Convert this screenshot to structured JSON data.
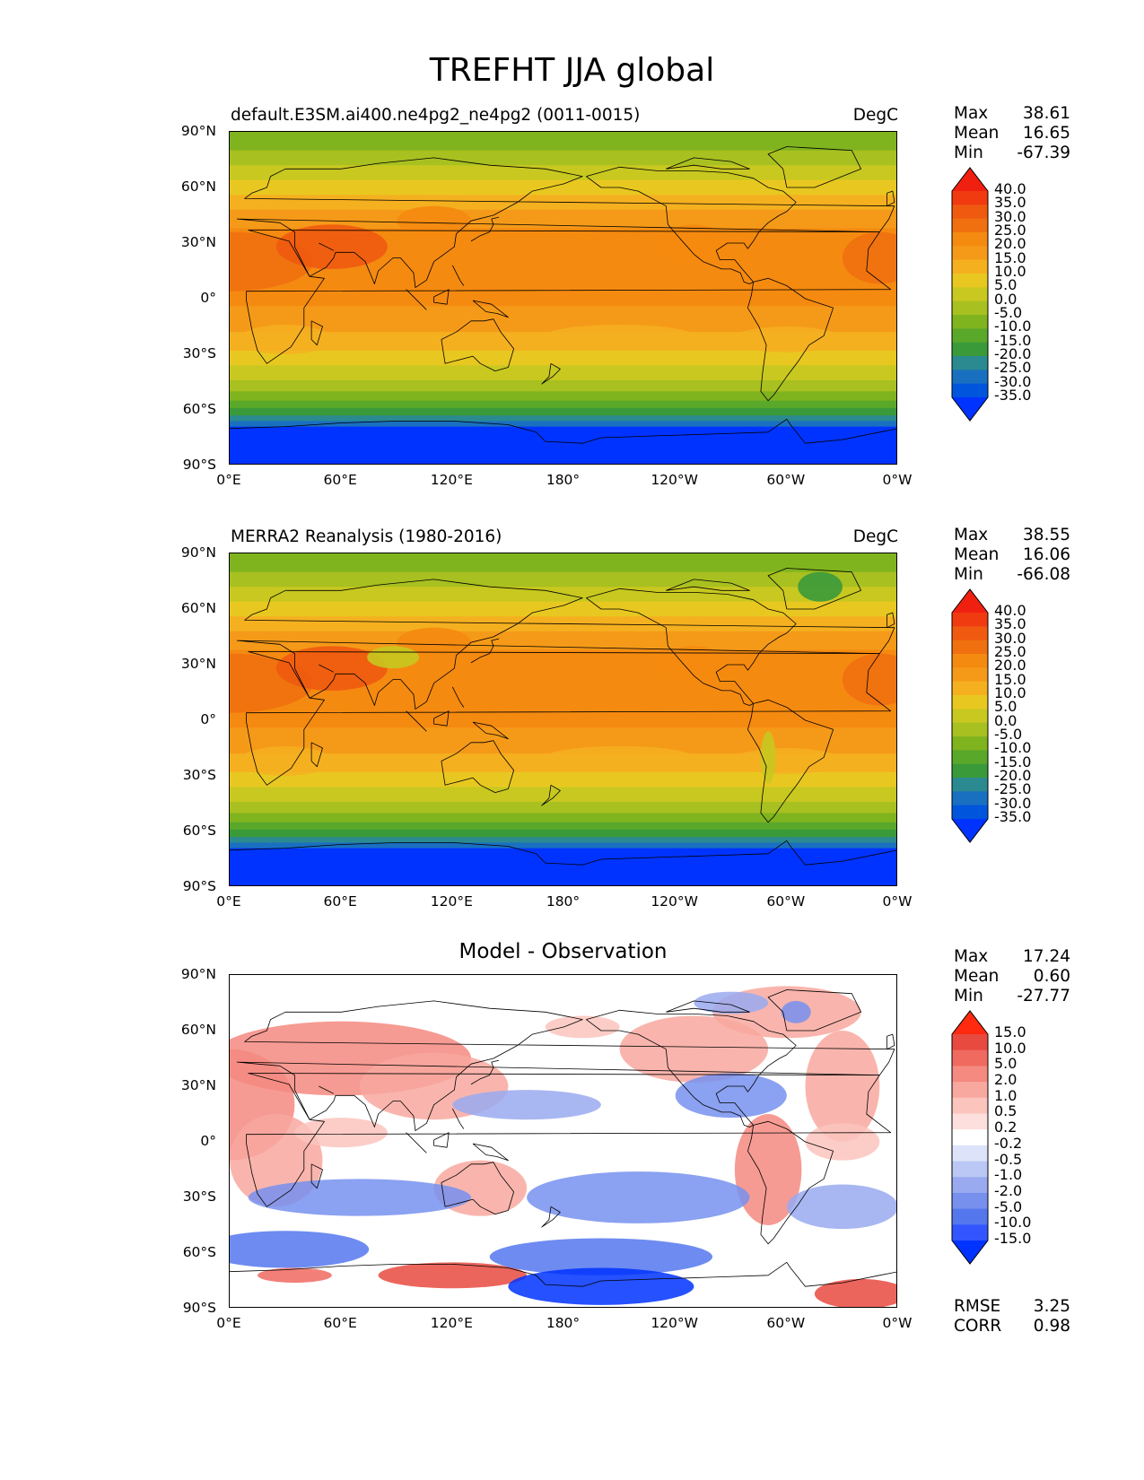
{
  "title": "TREFHT JJA global",
  "lat_labels": [
    "90°N",
    "60°N",
    "30°N",
    "0°",
    "30°S",
    "60°S",
    "90°S"
  ],
  "lon_labels": [
    "0°E",
    "60°E",
    "120°E",
    "180°",
    "120°W",
    "60°W",
    "0°W"
  ],
  "panels": [
    {
      "left_title": "default.E3SM.ai400.ne4pg2_ne4pg2 (0011-0015)",
      "right_title": "DegC",
      "stats": {
        "max_label": "Max",
        "max": "38.61",
        "mean_label": "Mean",
        "mean": "16.65",
        "min_label": "Min",
        "min": "-67.39"
      },
      "colorbar": [
        "40.0",
        "35.0",
        "30.0",
        "25.0",
        "20.0",
        "15.0",
        "10.0",
        "5.0",
        "0.0",
        "-5.0",
        "-10.0",
        "-15.0",
        "-20.0",
        "-25.0",
        "-30.0",
        "-35.0"
      ]
    },
    {
      "left_title": "MERRA2 Reanalysis (1980-2016)",
      "right_title": "DegC",
      "stats": {
        "max_label": "Max",
        "max": "38.55",
        "mean_label": "Mean",
        "mean": "16.06",
        "min_label": "Min",
        "min": "-66.08"
      },
      "colorbar": [
        "40.0",
        "35.0",
        "30.0",
        "25.0",
        "20.0",
        "15.0",
        "10.0",
        "5.0",
        "0.0",
        "-5.0",
        "-10.0",
        "-15.0",
        "-20.0",
        "-25.0",
        "-30.0",
        "-35.0"
      ]
    },
    {
      "center_title": "Model - Observation",
      "stats": {
        "max_label": "Max",
        "max": "17.24",
        "mean_label": "Mean",
        "mean": "0.60",
        "min_label": "Min",
        "min": "-27.77"
      },
      "colorbar": [
        "15.0",
        "10.0",
        "5.0",
        "2.0",
        "1.0",
        "0.5",
        "0.2",
        "-0.2",
        "-0.5",
        "-1.0",
        "-2.0",
        "-5.0",
        "-10.0",
        "-15.0"
      ],
      "error_stats": {
        "rmse_label": "RMSE",
        "rmse": "3.25",
        "corr_label": "CORR",
        "corr": "0.98"
      }
    }
  ],
  "colors": {
    "temp_scale": [
      "#0033ff",
      "#0055dd",
      "#1a70c0",
      "#2a8a90",
      "#3a9a3a",
      "#5aa82a",
      "#80b41e",
      "#a8c020",
      "#c8c820",
      "#e8c820",
      "#f5b020",
      "#f59a18",
      "#f58a10",
      "#f07010",
      "#f05a10",
      "#f03a10",
      "#f02010"
    ],
    "diff_scale": [
      "#0033ff",
      "#3355ff",
      "#5577ee",
      "#7790ee",
      "#99aaf0",
      "#bbc8f5",
      "#dde4fa",
      "#ffffff",
      "#fde0dd",
      "#fbc4bd",
      "#f8a89f",
      "#f58a80",
      "#f06a60",
      "#e84a40",
      "#ff2a10"
    ]
  }
}
